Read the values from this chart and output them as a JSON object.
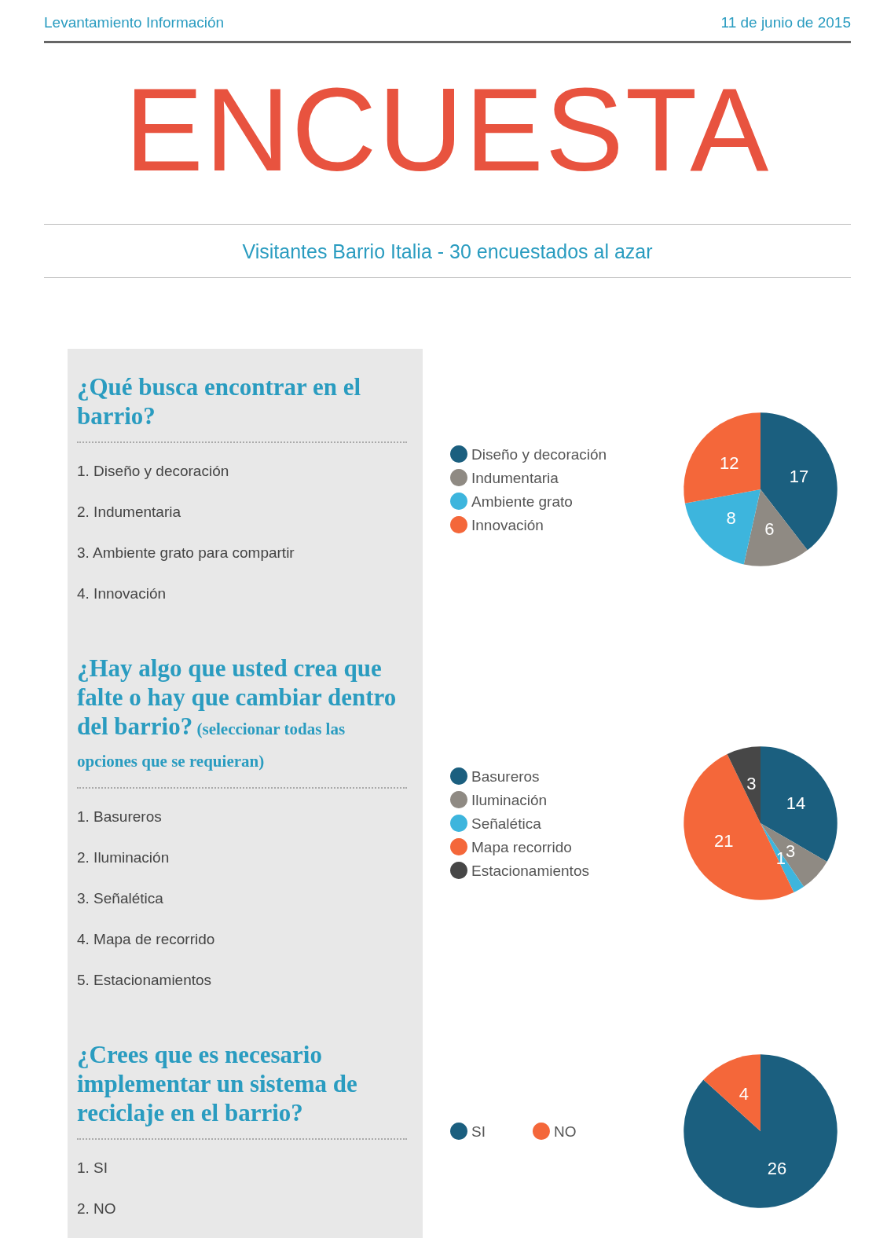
{
  "chart_data": [
    {
      "type": "other",
      "title": "ENCUESTA",
      "subtitle": "Visitantes Barrio Italia - 30 encuestados al azar",
      "annotations": [
        "Levantamiento Información",
        "11 de junio de 2015"
      ]
    },
    {
      "type": "pie",
      "title": "¿Qué busca encontrar en el barrio?",
      "annotations": [
        "1. Diseño y decoración",
        "2. Indumentaria",
        "3. Ambiente grato para compartir",
        "4. Innovación"
      ],
      "categories": [
        "Diseño y decoración",
        "Indumentaria",
        "Ambiente grato",
        "Innovación"
      ],
      "values": [
        17,
        6,
        8,
        12
      ],
      "colors": [
        "#1b5f7f",
        "#8f8a83",
        "#3db5dd",
        "#f4673a"
      ],
      "legend": "left",
      "data_labels": true
    },
    {
      "type": "pie",
      "title": "¿Hay algo que usted crea que falte o hay que cambiar dentro del barrio?",
      "subtitle": "(seleccionar todas las opciones que se requieran)",
      "annotations": [
        "1. Basureros",
        "2. Iluminación",
        "3. Señalética",
        "4. Mapa de recorrido",
        "5. Estacionamientos"
      ],
      "categories": [
        "Basureros",
        "Iluminación",
        "Señalética",
        "Mapa recorrido",
        "Estacionamientos"
      ],
      "values": [
        14,
        3,
        1,
        21,
        3
      ],
      "colors": [
        "#1b5f7f",
        "#8f8a83",
        "#3db5dd",
        "#f4673a",
        "#474747"
      ],
      "legend": "left",
      "data_labels": true
    },
    {
      "type": "pie",
      "title": "¿Crees que es necesario implementar un sistema de reciclaje en el barrio?",
      "annotations": [
        "1. SI",
        "2. NO"
      ],
      "categories": [
        "SI",
        "NO"
      ],
      "values": [
        26,
        4
      ],
      "colors": [
        "#1b5f7f",
        "#f4673a"
      ],
      "legend": "left",
      "data_labels": true
    }
  ]
}
